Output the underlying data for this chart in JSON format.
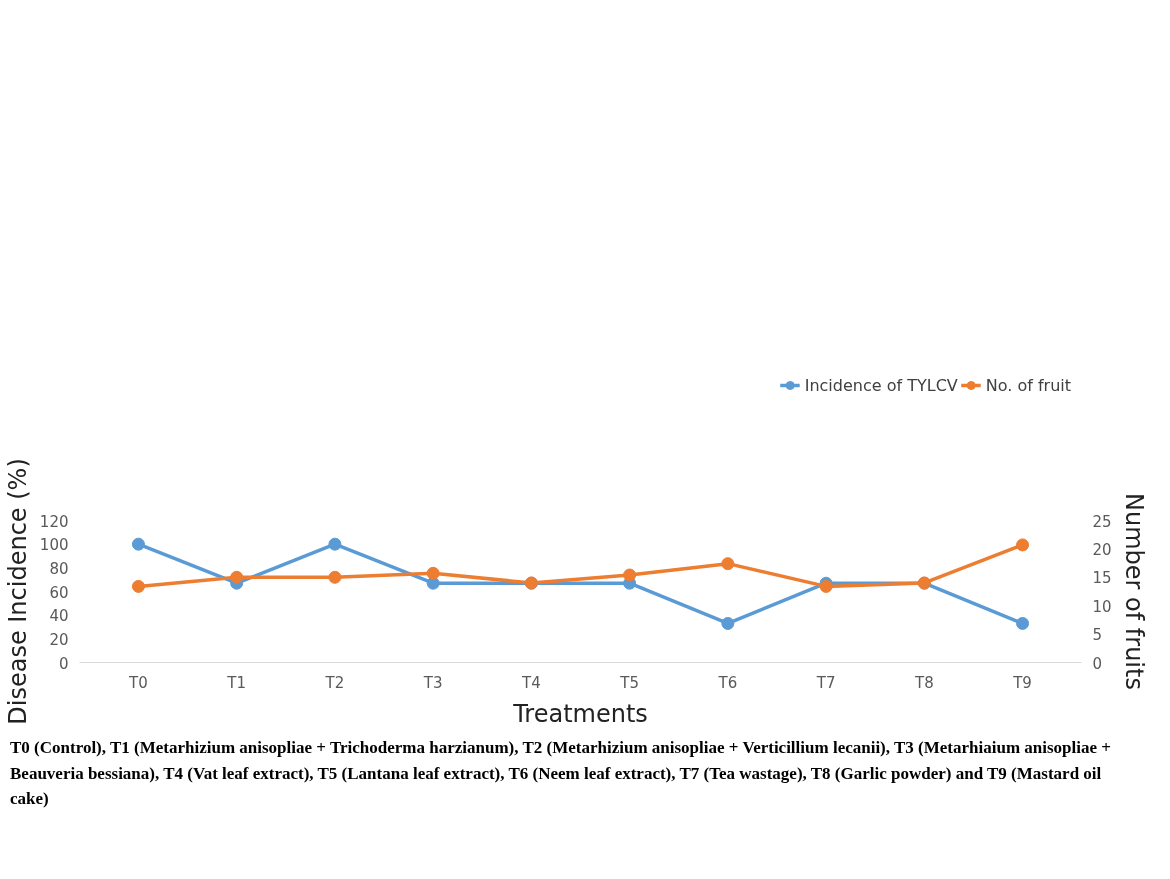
{
  "chart_data": {
    "type": "line",
    "categories": [
      "T0",
      "T1",
      "T2",
      "T3",
      "T4",
      "T5",
      "T6",
      "T7",
      "T8",
      "T9"
    ],
    "series": [
      {
        "name": "Incidence of TYLCV",
        "color": "#5b9bd5",
        "values": [
          100,
          67,
          100,
          67,
          67,
          67,
          33,
          67,
          67,
          33
        ]
      },
      {
        "name": "No. of fruit",
        "color": "#ed7d31",
        "axis": "y2",
        "values": [
          13.4,
          15.0,
          15.0,
          15.7,
          14.0,
          15.4,
          17.4,
          13.4,
          14.0,
          20.7
        ]
      }
    ],
    "xlabel": "Treatments",
    "ylabel": "Disease Incidence (%)",
    "y2label": "Number of fruits",
    "ylim": [
      0,
      120
    ],
    "yticks": [
      0,
      20,
      40,
      60,
      80,
      100,
      120
    ],
    "y2lim": [
      0,
      25
    ],
    "y2ticks": [
      0,
      5,
      10,
      15,
      20,
      25
    ],
    "marker": "circle",
    "line_style": "solid",
    "grid": false,
    "legend": "top right",
    "annotations": [
      "T0 (Control), T1 (Metarhizium anisopliae + Trichoderma harzianum), T2 (Metarhizium anisopliae + Verticillium lecanii), T3 (Metarhiaium anisopliae + Beauveria bessiana), T4 (Vat leaf extract), T5 (Lantana leaf extract), T6 (Neem leaf extract), T7 (Tea wastage), T8 (Garlic powder) and T9 (Mastard oil cake)"
    ]
  }
}
